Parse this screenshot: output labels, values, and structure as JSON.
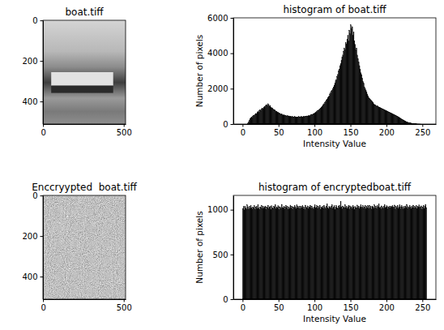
{
  "chart_data": [
    {
      "type": "image",
      "title": "boat.tiff",
      "xlim": [
        -0.5,
        511.5
      ],
      "ylim": [
        511.5,
        -0.5
      ],
      "xticks": [
        0,
        500
      ],
      "yticks": [
        0,
        200,
        400
      ]
    },
    {
      "type": "histogram",
      "title": "histogram of boat.tiff",
      "x_label": "Intensity Value",
      "y_label": "Number of pixels",
      "color": "#000000",
      "bins": [
        0,
        1,
        2,
        3,
        4,
        5,
        6,
        7,
        8,
        9,
        10,
        11,
        12,
        13,
        14,
        15,
        16,
        17,
        18,
        19,
        20,
        21,
        22,
        23,
        24,
        25,
        26,
        27,
        28,
        29,
        30,
        31,
        32,
        33,
        34,
        35,
        36,
        37,
        38,
        39,
        40,
        41,
        42,
        43,
        44,
        45,
        46,
        47,
        48,
        49,
        50,
        51,
        52,
        53,
        54,
        55,
        56,
        57,
        58,
        59,
        60,
        61,
        62,
        63,
        64,
        65,
        66,
        67,
        68,
        69,
        70,
        71,
        72,
        73,
        74,
        75,
        76,
        77,
        78,
        79,
        80,
        81,
        82,
        83,
        84,
        85,
        86,
        87,
        88,
        89,
        90,
        91,
        92,
        93,
        94,
        95,
        96,
        97,
        98,
        99,
        100,
        101,
        102,
        103,
        104,
        105,
        106,
        107,
        108,
        109,
        110,
        111,
        112,
        113,
        114,
        115,
        116,
        117,
        118,
        119,
        120,
        121,
        122,
        123,
        124,
        125,
        126,
        127,
        128,
        129,
        130,
        131,
        132,
        133,
        134,
        135,
        136,
        137,
        138,
        139,
        140,
        141,
        142,
        143,
        144,
        145,
        146,
        147,
        148,
        149,
        150,
        151,
        152,
        153,
        154,
        155,
        156,
        157,
        158,
        159,
        160,
        161,
        162,
        163,
        164,
        165,
        166,
        167,
        168,
        169,
        170,
        171,
        172,
        173,
        174,
        175,
        176,
        177,
        178,
        179,
        180,
        181,
        182,
        183,
        184,
        185,
        186,
        187,
        188,
        189,
        190,
        191,
        192,
        193,
        194,
        195,
        196,
        197,
        198,
        199,
        200,
        201,
        202,
        203,
        204,
        205,
        206,
        207,
        208,
        209,
        210,
        211,
        212,
        213,
        214,
        215,
        216,
        217,
        218,
        219,
        220,
        221,
        222,
        223,
        224,
        225,
        226,
        227,
        228,
        229,
        230,
        231,
        232,
        233,
        234,
        235,
        236,
        237,
        238,
        239,
        240,
        241,
        242,
        243,
        244,
        245,
        246,
        247,
        248,
        249,
        250,
        251,
        252,
        253,
        254,
        255,
        256
      ],
      "counts": [
        0,
        0,
        0,
        0,
        0,
        0,
        0,
        50,
        120,
        200,
        300,
        350,
        400,
        380,
        450,
        500,
        480,
        550,
        600,
        580,
        650,
        700,
        680,
        750,
        800,
        780,
        850,
        900,
        870,
        950,
        1000,
        980,
        1050,
        1100,
        1020,
        1150,
        1080,
        1000,
        1050,
        950,
        900,
        920,
        850,
        800,
        820,
        750,
        700,
        720,
        650,
        680,
        600,
        620,
        580,
        550,
        560,
        520,
        500,
        530,
        480,
        500,
        470,
        450,
        480,
        440,
        460,
        420,
        450,
        430,
        400,
        420,
        410,
        390,
        420,
        400,
        380,
        410,
        390,
        400,
        420,
        380,
        400,
        430,
        410,
        390,
        420,
        440,
        410,
        450,
        430,
        460,
        440,
        480,
        460,
        500,
        480,
        520,
        550,
        530,
        580,
        600,
        620,
        650,
        680,
        700,
        740,
        780,
        820,
        850,
        900,
        950,
        1000,
        1050,
        1100,
        1150,
        1200,
        1280,
        1350,
        1400,
        1480,
        1550,
        1600,
        1700,
        1750,
        1850,
        1900,
        2000,
        2100,
        2200,
        2300,
        2450,
        2500,
        2700,
        2800,
        3000,
        3100,
        3300,
        3400,
        3600,
        3800,
        3900,
        4100,
        4300,
        4200,
        4600,
        4500,
        4800,
        5000,
        4700,
        5300,
        5100,
        5600,
        5400,
        5500,
        5000,
        5200,
        4700,
        4500,
        4200,
        4300,
        3900,
        3700,
        3500,
        3300,
        3100,
        2900,
        2800,
        2600,
        2400,
        2300,
        2100,
        2000,
        1900,
        1800,
        1700,
        1600,
        1500,
        1450,
        1400,
        1350,
        1300,
        1250,
        1200,
        1150,
        1100,
        1100,
        1050,
        1000,
        1020,
        980,
        960,
        950,
        930,
        900,
        880,
        860,
        850,
        820,
        800,
        780,
        760,
        750,
        720,
        700,
        680,
        660,
        640,
        620,
        600,
        580,
        560,
        540,
        520,
        500,
        480,
        450,
        430,
        400,
        380,
        350,
        330,
        300,
        280,
        250,
        230,
        200,
        180,
        160,
        140,
        120,
        100,
        90,
        80,
        70,
        60,
        50,
        40,
        30,
        25,
        20,
        15,
        10,
        8,
        6,
        5,
        4,
        3,
        2,
        1,
        0,
        0,
        0,
        0,
        0,
        0,
        0,
        0
      ],
      "xlim": [
        -12.8,
        268.8
      ],
      "ylim": [
        0,
        6000
      ],
      "xticks": [
        0,
        50,
        100,
        150,
        200,
        250
      ],
      "yticks": [
        0,
        2000,
        4000,
        6000
      ]
    },
    {
      "type": "image",
      "title": "Enccryypted  boat.tiff",
      "xlim": [
        -0.5,
        511.5
      ],
      "ylim": [
        511.5,
        -0.5
      ],
      "xticks": [
        0,
        500
      ],
      "yticks": [
        0,
        200,
        400
      ]
    },
    {
      "type": "histogram",
      "title": "histogram of encryptedboat.tiff",
      "x_label": "Intensity Value",
      "y_label": "Number of pixels",
      "color": "#000000",
      "bins": [
        0,
        1,
        2,
        3,
        4,
        5,
        6,
        7,
        8,
        9,
        10,
        11,
        12,
        13,
        14,
        15,
        16,
        17,
        18,
        19,
        20,
        21,
        22,
        23,
        24,
        25,
        26,
        27,
        28,
        29,
        30,
        31,
        32,
        33,
        34,
        35,
        36,
        37,
        38,
        39,
        40,
        41,
        42,
        43,
        44,
        45,
        46,
        47,
        48,
        49,
        50,
        51,
        52,
        53,
        54,
        55,
        56,
        57,
        58,
        59,
        60,
        61,
        62,
        63,
        64,
        65,
        66,
        67,
        68,
        69,
        70,
        71,
        72,
        73,
        74,
        75,
        76,
        77,
        78,
        79,
        80,
        81,
        82,
        83,
        84,
        85,
        86,
        87,
        88,
        89,
        90,
        91,
        92,
        93,
        94,
        95,
        96,
        97,
        98,
        99,
        100,
        101,
        102,
        103,
        104,
        105,
        106,
        107,
        108,
        109,
        110,
        111,
        112,
        113,
        114,
        115,
        116,
        117,
        118,
        119,
        120,
        121,
        122,
        123,
        124,
        125,
        126,
        127,
        128,
        129,
        130,
        131,
        132,
        133,
        134,
        135,
        136,
        137,
        138,
        139,
        140,
        141,
        142,
        143,
        144,
        145,
        146,
        147,
        148,
        149,
        150,
        151,
        152,
        153,
        154,
        155,
        156,
        157,
        158,
        159,
        160,
        161,
        162,
        163,
        164,
        165,
        166,
        167,
        168,
        169,
        170,
        171,
        172,
        173,
        174,
        175,
        176,
        177,
        178,
        179,
        180,
        181,
        182,
        183,
        184,
        185,
        186,
        187,
        188,
        189,
        190,
        191,
        192,
        193,
        194,
        195,
        196,
        197,
        198,
        199,
        200,
        201,
        202,
        203,
        204,
        205,
        206,
        207,
        208,
        209,
        210,
        211,
        212,
        213,
        214,
        215,
        216,
        217,
        218,
        219,
        220,
        221,
        222,
        223,
        224,
        225,
        226,
        227,
        228,
        229,
        230,
        231,
        232,
        233,
        234,
        235,
        236,
        237,
        238,
        239,
        240,
        241,
        242,
        243,
        244,
        245,
        246,
        247,
        248,
        249,
        250,
        251,
        252,
        253,
        254,
        255,
        256
      ],
      "counts": [
        1012,
        1035,
        998,
        1041,
        1020,
        1007,
        1053,
        1026,
        1003,
        1038,
        1015,
        1047,
        1022,
        1009,
        1031,
        1018,
        1044,
        1001,
        1027,
        1036,
        1013,
        1058,
        1019,
        1005,
        1032,
        1024,
        1049,
        1010,
        1039,
        1016,
        1028,
        1042,
        1006,
        1033,
        1021,
        1050,
        1011,
        1029,
        1037,
        1002,
        1045,
        1023,
        1014,
        1040,
        1026,
        1055,
        1008,
        1030,
        1019,
        1046,
        1004,
        1034,
        1027,
        1012,
        1060,
        1025,
        1017,
        1038,
        1009,
        1031,
        1048,
        1020,
        1036,
        1003,
        1029,
        1013,
        1052,
        1022,
        1040,
        1006,
        1033,
        1018,
        1044,
        1027,
        1011,
        1057,
        1024,
        1035,
        1015,
        1041,
        1008,
        1037,
        1023,
        1046,
        1014,
        1030,
        1002,
        1051,
        1026,
        1019,
        1043,
        1010,
        1034,
        1028,
        1047,
        1016,
        1039,
        1021,
        1007,
        1032,
        1054,
        1017,
        1028,
        1045,
        1012,
        1036,
        1024,
        1050,
        1005,
        1031,
        1020,
        1042,
        1015,
        1048,
        1027,
        1011,
        1035,
        1062,
        1022,
        1009,
        1040,
        1029,
        1018,
        1037,
        1053,
        1013,
        1026,
        1044,
        1001,
        1030,
        1045,
        1020,
        1016,
        1038,
        1049,
        1025,
        1095,
        1033,
        1010,
        1042,
        1028,
        1019,
        1056,
        1023,
        1036,
        1014,
        1029,
        1051,
        1007,
        1043,
        1021,
        1034,
        1012,
        1048,
        1030,
        1004,
        1039,
        1025,
        1017,
        1052,
        1024,
        1041,
        1011,
        1033,
        1058,
        1020,
        1027,
        1046,
        1015,
        1031,
        1049,
        1008,
        1037,
        1022,
        1044,
        1013,
        1050,
        1018,
        1035,
        1006,
        1042,
        1029,
        1016,
        1053,
        1023,
        1038,
        1010,
        1045,
        1027,
        1064,
        1019,
        1032,
        1009,
        1043,
        1026,
        1014,
        1037,
        1055,
        1021,
        1030,
        1047,
        1012,
        1034,
        1025,
        1041,
        1017,
        1039,
        1028,
        1046,
        1020,
        1031,
        1052,
        1004,
        1036,
        1023,
        1048,
        1015,
        1029,
        1057,
        1011,
        1033,
        1044,
        1026,
        1007,
        1037,
        1016,
        1042,
        1027,
        1059,
        1013,
        1034,
        1021,
        1045,
        1030,
        1008,
        1040,
        1024,
        1051,
        1018,
        1035,
        1022,
        1047,
        1010,
        1038,
        1026,
        1054,
        1017,
        1032,
        1043,
        1005,
        1028,
        1049,
        1014,
        1036,
        1061,
        1025
      ],
      "xlim": [
        -12.8,
        268.8
      ],
      "ylim": [
        0,
        1160
      ],
      "xticks": [
        0,
        50,
        100,
        150,
        200,
        250
      ],
      "yticks": [
        0,
        500,
        1000
      ]
    }
  ]
}
